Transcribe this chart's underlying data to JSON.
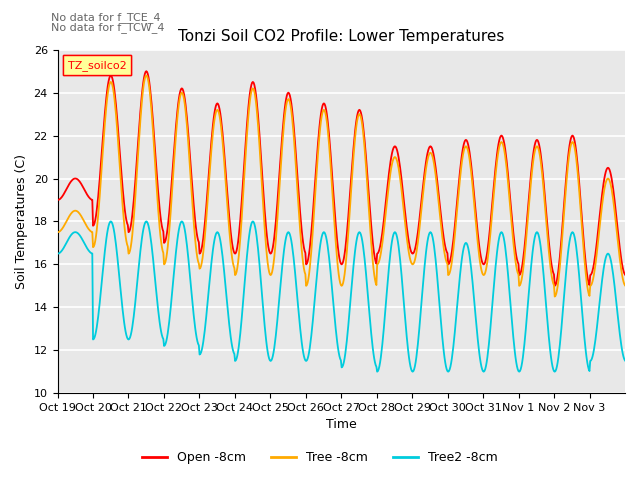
{
  "title": "Tonzi Soil CO2 Profile: Lower Temperatures",
  "xlabel": "Time",
  "ylabel": "Soil Temperatures (C)",
  "ylim": [
    10,
    26
  ],
  "yticks": [
    10,
    12,
    14,
    16,
    18,
    20,
    22,
    24,
    26
  ],
  "annotation1": "No data for f_TCE_4",
  "annotation2": "No data for f_TCW_4",
  "legend_box_label": "TZ_soilco2",
  "legend_lines": [
    "Open -8cm",
    "Tree -8cm",
    "Tree2 -8cm"
  ],
  "line_colors": [
    "#ff0000",
    "#ffaa00",
    "#00ccdd"
  ],
  "xtick_labels": [
    "Oct 19",
    "Oct 20",
    "Oct 21",
    "Oct 22",
    "Oct 23",
    "Oct 24",
    "Oct 25",
    "Oct 26",
    "Oct 27",
    "Oct 28",
    "Oct 29",
    "Oct 30",
    "Oct 31",
    "Nov 1",
    "Nov 2",
    "Nov 3"
  ],
  "background_color": "#ffffff",
  "plot_bg_color": "#e8e8e8",
  "grid_color": "#ffffff",
  "n_days": 16,
  "open_peaks": [
    20.0,
    24.8,
    25.0,
    24.2,
    23.5,
    24.5,
    24.0,
    23.5,
    23.2,
    21.5,
    21.5,
    21.8,
    22.0,
    21.8,
    22.0,
    20.5
  ],
  "open_mins": [
    19.0,
    17.8,
    17.5,
    17.0,
    16.5,
    16.5,
    16.5,
    16.0,
    16.0,
    16.5,
    16.5,
    16.0,
    16.0,
    15.5,
    15.0,
    15.5
  ],
  "tree_peaks": [
    18.5,
    24.5,
    24.8,
    24.0,
    23.2,
    24.2,
    23.7,
    23.2,
    23.0,
    21.0,
    21.2,
    21.5,
    21.7,
    21.5,
    21.7,
    20.0
  ],
  "tree_mins": [
    17.5,
    16.8,
    16.5,
    16.0,
    15.8,
    15.5,
    15.5,
    15.0,
    15.0,
    16.0,
    16.0,
    15.5,
    15.5,
    15.0,
    14.5,
    15.0
  ],
  "tree2_peaks": [
    17.5,
    18.0,
    18.0,
    18.0,
    17.5,
    18.0,
    17.5,
    17.5,
    17.5,
    17.5,
    17.5,
    17.0,
    17.5,
    17.5,
    17.5,
    16.5
  ],
  "tree2_mins": [
    16.5,
    12.5,
    12.5,
    12.2,
    11.8,
    11.5,
    11.5,
    11.5,
    11.2,
    11.0,
    11.0,
    11.0,
    11.0,
    11.0,
    11.0,
    11.5
  ],
  "figsize": [
    6.4,
    4.8
  ],
  "dpi": 100
}
